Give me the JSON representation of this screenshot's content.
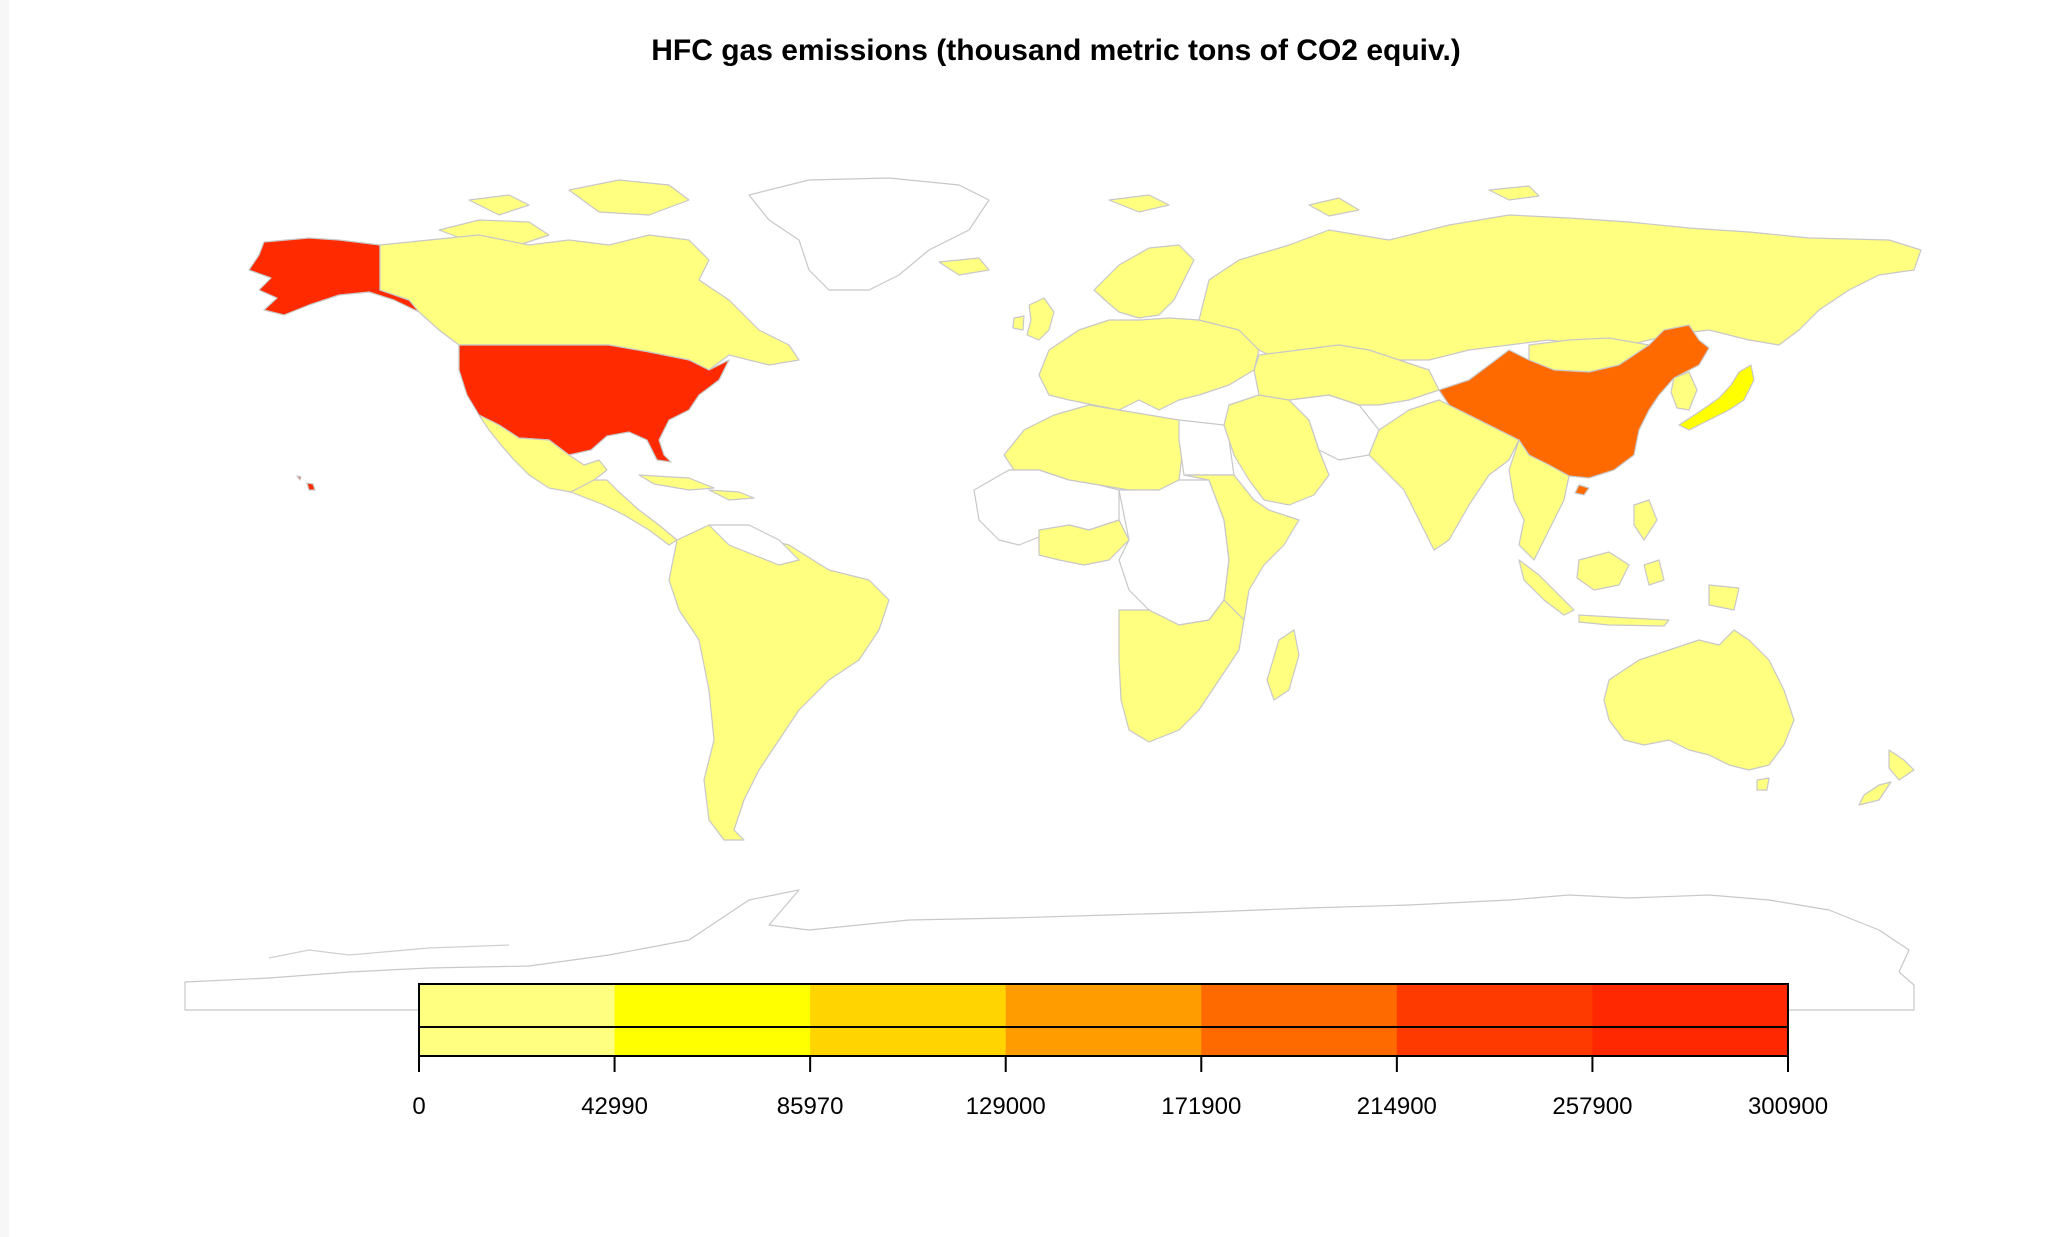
{
  "title": "HFC gas emissions (thousand metric tons of CO2 equiv.)",
  "colors": {
    "no_data": "#ffffff",
    "border": "#c8c8c8",
    "scale": [
      "#ffff80",
      "#ffff00",
      "#ffd400",
      "#ffaa00",
      "#ff8000",
      "#ff5500",
      "#ff2a00"
    ]
  },
  "legend": {
    "breaks": [
      "0",
      "42990",
      "85970",
      "129000",
      "171900",
      "214900",
      "257900",
      "300900"
    ],
    "bins": [
      {
        "color": "#ffff80"
      },
      {
        "color": "#ffff00"
      },
      {
        "color": "#ffd400"
      },
      {
        "color": "#ff9d00"
      },
      {
        "color": "#ff6a00"
      },
      {
        "color": "#ff3a00"
      },
      {
        "color": "#ff2800"
      }
    ]
  },
  "regions": [
    {
      "id": "alaska",
      "color": "#ff2a00"
    },
    {
      "id": "canada",
      "color": "#ffff80"
    },
    {
      "id": "usa",
      "color": "#ff2a00"
    },
    {
      "id": "hawaii",
      "color": "#ff2a00"
    },
    {
      "id": "greenland",
      "color": "#ffffff"
    },
    {
      "id": "mexico",
      "color": "#ffff80"
    },
    {
      "id": "central-america",
      "color": "#ffff80"
    },
    {
      "id": "caribbean",
      "color": "#ffff80"
    },
    {
      "id": "south-america",
      "color": "#ffff80"
    },
    {
      "id": "guianas",
      "color": "#ffffff"
    },
    {
      "id": "europe",
      "color": "#ffff80"
    },
    {
      "id": "uk-ireland",
      "color": "#ffff80"
    },
    {
      "id": "scandinavia",
      "color": "#ffff80"
    },
    {
      "id": "russia",
      "color": "#ffff80"
    },
    {
      "id": "north-africa",
      "color": "#ffff80"
    },
    {
      "id": "egypt",
      "color": "#ffffff"
    },
    {
      "id": "west-africa-nodata",
      "color": "#ffffff"
    },
    {
      "id": "west-africa",
      "color": "#ffff80"
    },
    {
      "id": "central-africa",
      "color": "#ffffff"
    },
    {
      "id": "east-africa",
      "color": "#ffff80"
    },
    {
      "id": "southern-africa",
      "color": "#ffff80"
    },
    {
      "id": "madagascar",
      "color": "#ffff80"
    },
    {
      "id": "middle-east",
      "color": "#ffff80"
    },
    {
      "id": "iran",
      "color": "#ffffff"
    },
    {
      "id": "central-asia",
      "color": "#ffff80"
    },
    {
      "id": "south-asia",
      "color": "#ffff80"
    },
    {
      "id": "mongolia",
      "color": "#ffff80"
    },
    {
      "id": "china",
      "color": "#ff6a00"
    },
    {
      "id": "korea",
      "color": "#ffff80"
    },
    {
      "id": "japan",
      "color": "#ffff00"
    },
    {
      "id": "southeast-asia",
      "color": "#ffff80"
    },
    {
      "id": "indonesia",
      "color": "#ffff80"
    },
    {
      "id": "papua",
      "color": "#ffff80"
    },
    {
      "id": "australia",
      "color": "#ffff80"
    },
    {
      "id": "new-zealand",
      "color": "#ffff80"
    },
    {
      "id": "arctic-islands",
      "color": "#ffff80"
    },
    {
      "id": "antarctica",
      "color": "#ffffff"
    }
  ]
}
